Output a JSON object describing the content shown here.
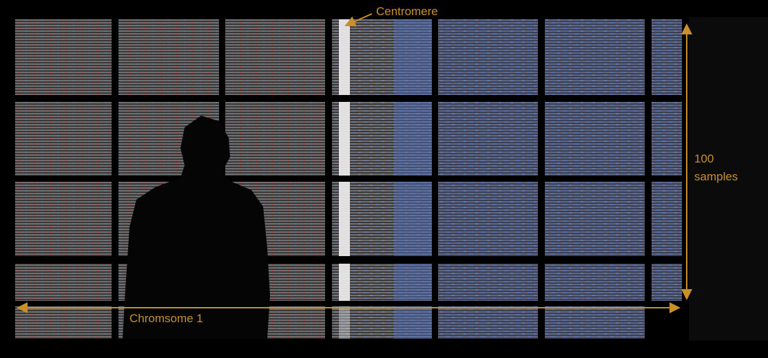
{
  "annotations": {
    "centromere": "Centromere",
    "samples": [
      "100",
      "samples"
    ],
    "chromosome": "Chromsome 1"
  }
}
